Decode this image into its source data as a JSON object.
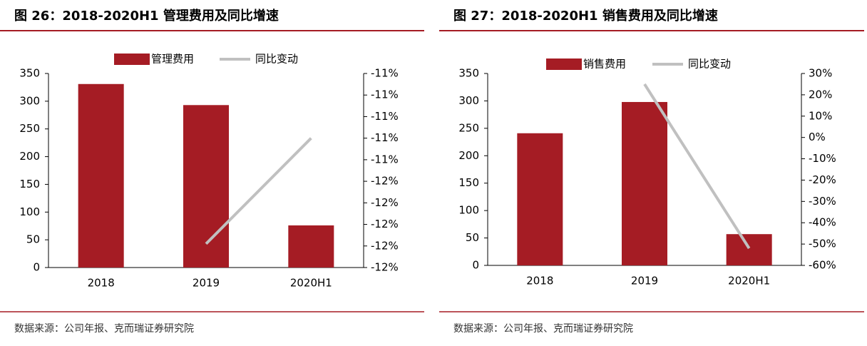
{
  "chart_data": [
    {
      "type": "combo",
      "title": "图 26：2018-2020H1 管理费用及同比增速",
      "categories": [
        "2018",
        "2019",
        "2020H1"
      ],
      "series": [
        {
          "name": "管理费用",
          "type": "bar",
          "color": "#a51c24",
          "values": [
            331,
            293,
            76
          ]
        },
        {
          "name": "同比变动",
          "type": "line",
          "axis": "y2",
          "color": "#c0c0c0",
          "values": [
            null,
            -11.79,
            -11.3
          ]
        }
      ],
      "ylim": [
        0,
        350
      ],
      "yticks": [
        0,
        50,
        100,
        150,
        200,
        250,
        300,
        350
      ],
      "y2lim": [
        -11.9,
        -11.0
      ],
      "y2ticks": [
        {
          "value": -11.9,
          "label": "-12%"
        },
        {
          "value": -11.8,
          "label": "-12%"
        },
        {
          "value": -11.7,
          "label": "-12%"
        },
        {
          "value": -11.6,
          "label": "-12%"
        },
        {
          "value": -11.5,
          "label": "-12%"
        },
        {
          "value": -11.4,
          "label": "-11%"
        },
        {
          "value": -11.3,
          "label": "-11%"
        },
        {
          "value": -11.2,
          "label": "-11%"
        },
        {
          "value": -11.1,
          "label": "-11%"
        },
        {
          "value": -11.0,
          "label": "-11%"
        }
      ],
      "source": "数据来源：公司年报、克而瑞证券研究院"
    },
    {
      "type": "combo",
      "title": "图 27：2018-2020H1 销售费用及同比增速",
      "categories": [
        "2018",
        "2019",
        "2020H1"
      ],
      "series": [
        {
          "name": "销售费用",
          "type": "bar",
          "color": "#a51c24",
          "values": [
            241,
            298,
            57
          ]
        },
        {
          "name": "同比变动",
          "type": "line",
          "axis": "y2",
          "color": "#c0c0c0",
          "values": [
            null,
            25,
            -52
          ]
        }
      ],
      "ylim": [
        0,
        350
      ],
      "yticks": [
        0,
        50,
        100,
        150,
        200,
        250,
        300,
        350
      ],
      "y2lim": [
        -60,
        30
      ],
      "y2ticks": [
        {
          "value": -60,
          "label": "-60%"
        },
        {
          "value": -50,
          "label": "-50%"
        },
        {
          "value": -40,
          "label": "-40%"
        },
        {
          "value": -30,
          "label": "-30%"
        },
        {
          "value": -20,
          "label": "-20%"
        },
        {
          "value": -10,
          "label": "-10%"
        },
        {
          "value": 0,
          "label": "0%"
        },
        {
          "value": 10,
          "label": "10%"
        },
        {
          "value": 20,
          "label": "20%"
        },
        {
          "value": 30,
          "label": "30%"
        }
      ],
      "source": "数据来源：公司年报、克而瑞证券研究院"
    }
  ]
}
